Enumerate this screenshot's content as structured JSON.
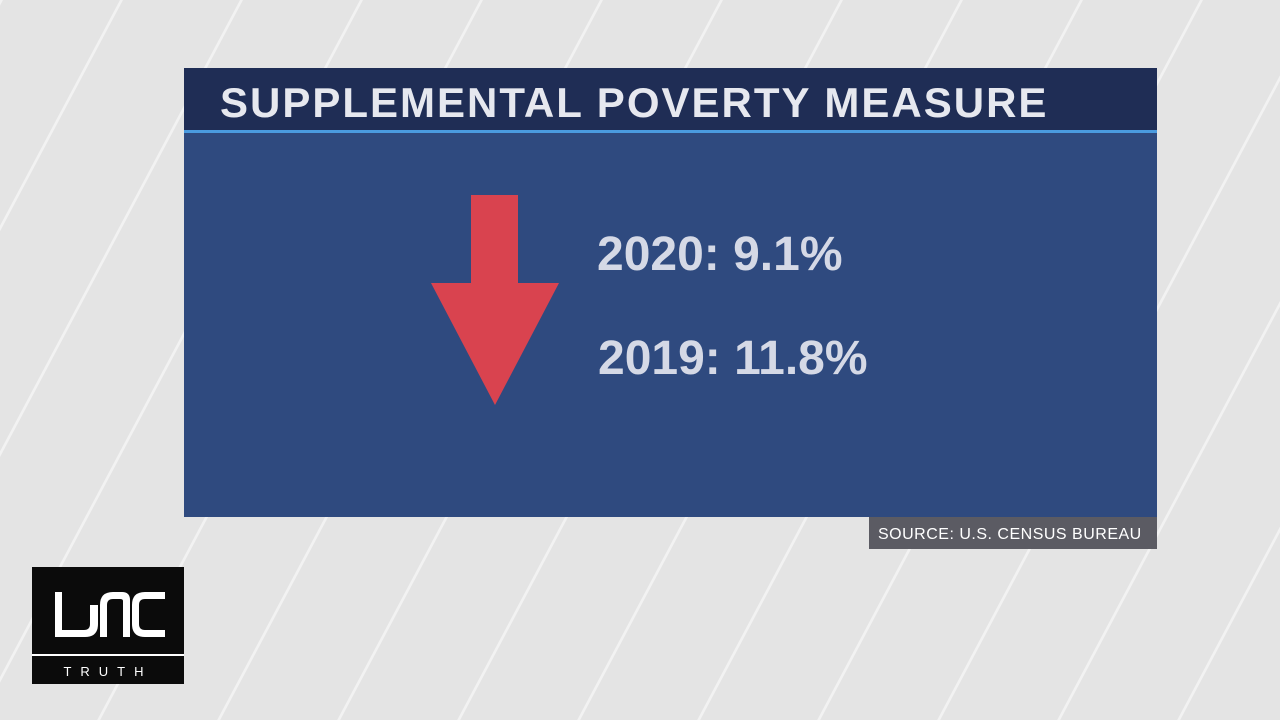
{
  "header": {
    "title": "SUPPLEMENTAL POVERTY MEASURE"
  },
  "items": [
    {
      "text": "2020: 9.1%"
    },
    {
      "text": "2019: 11.8%"
    }
  ],
  "source": "SOURCE: U.S. CENSUS BUREAU",
  "logo": {
    "subtitle": "TRUTH"
  }
}
